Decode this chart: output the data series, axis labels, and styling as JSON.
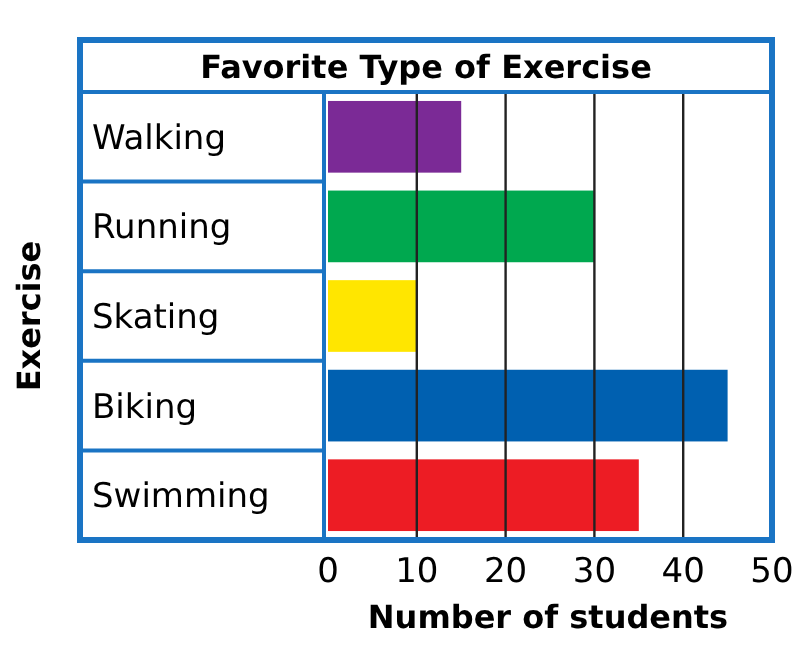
{
  "chart_data": {
    "type": "bar",
    "orientation": "horizontal",
    "title": "Favorite Type of Exercise",
    "xlabel": "Number of students",
    "ylabel": "Exercise",
    "categories": [
      "Walking",
      "Running",
      "Skating",
      "Biking",
      "Swimming"
    ],
    "values": [
      15,
      30,
      10,
      45,
      35
    ],
    "colors": [
      "#7b2a96",
      "#00a84f",
      "#ffe600",
      "#0060b0",
      "#ed1c24"
    ],
    "xlim": [
      0,
      50
    ],
    "xticks": [
      0,
      10,
      20,
      30,
      40,
      50
    ],
    "grid": "x"
  }
}
